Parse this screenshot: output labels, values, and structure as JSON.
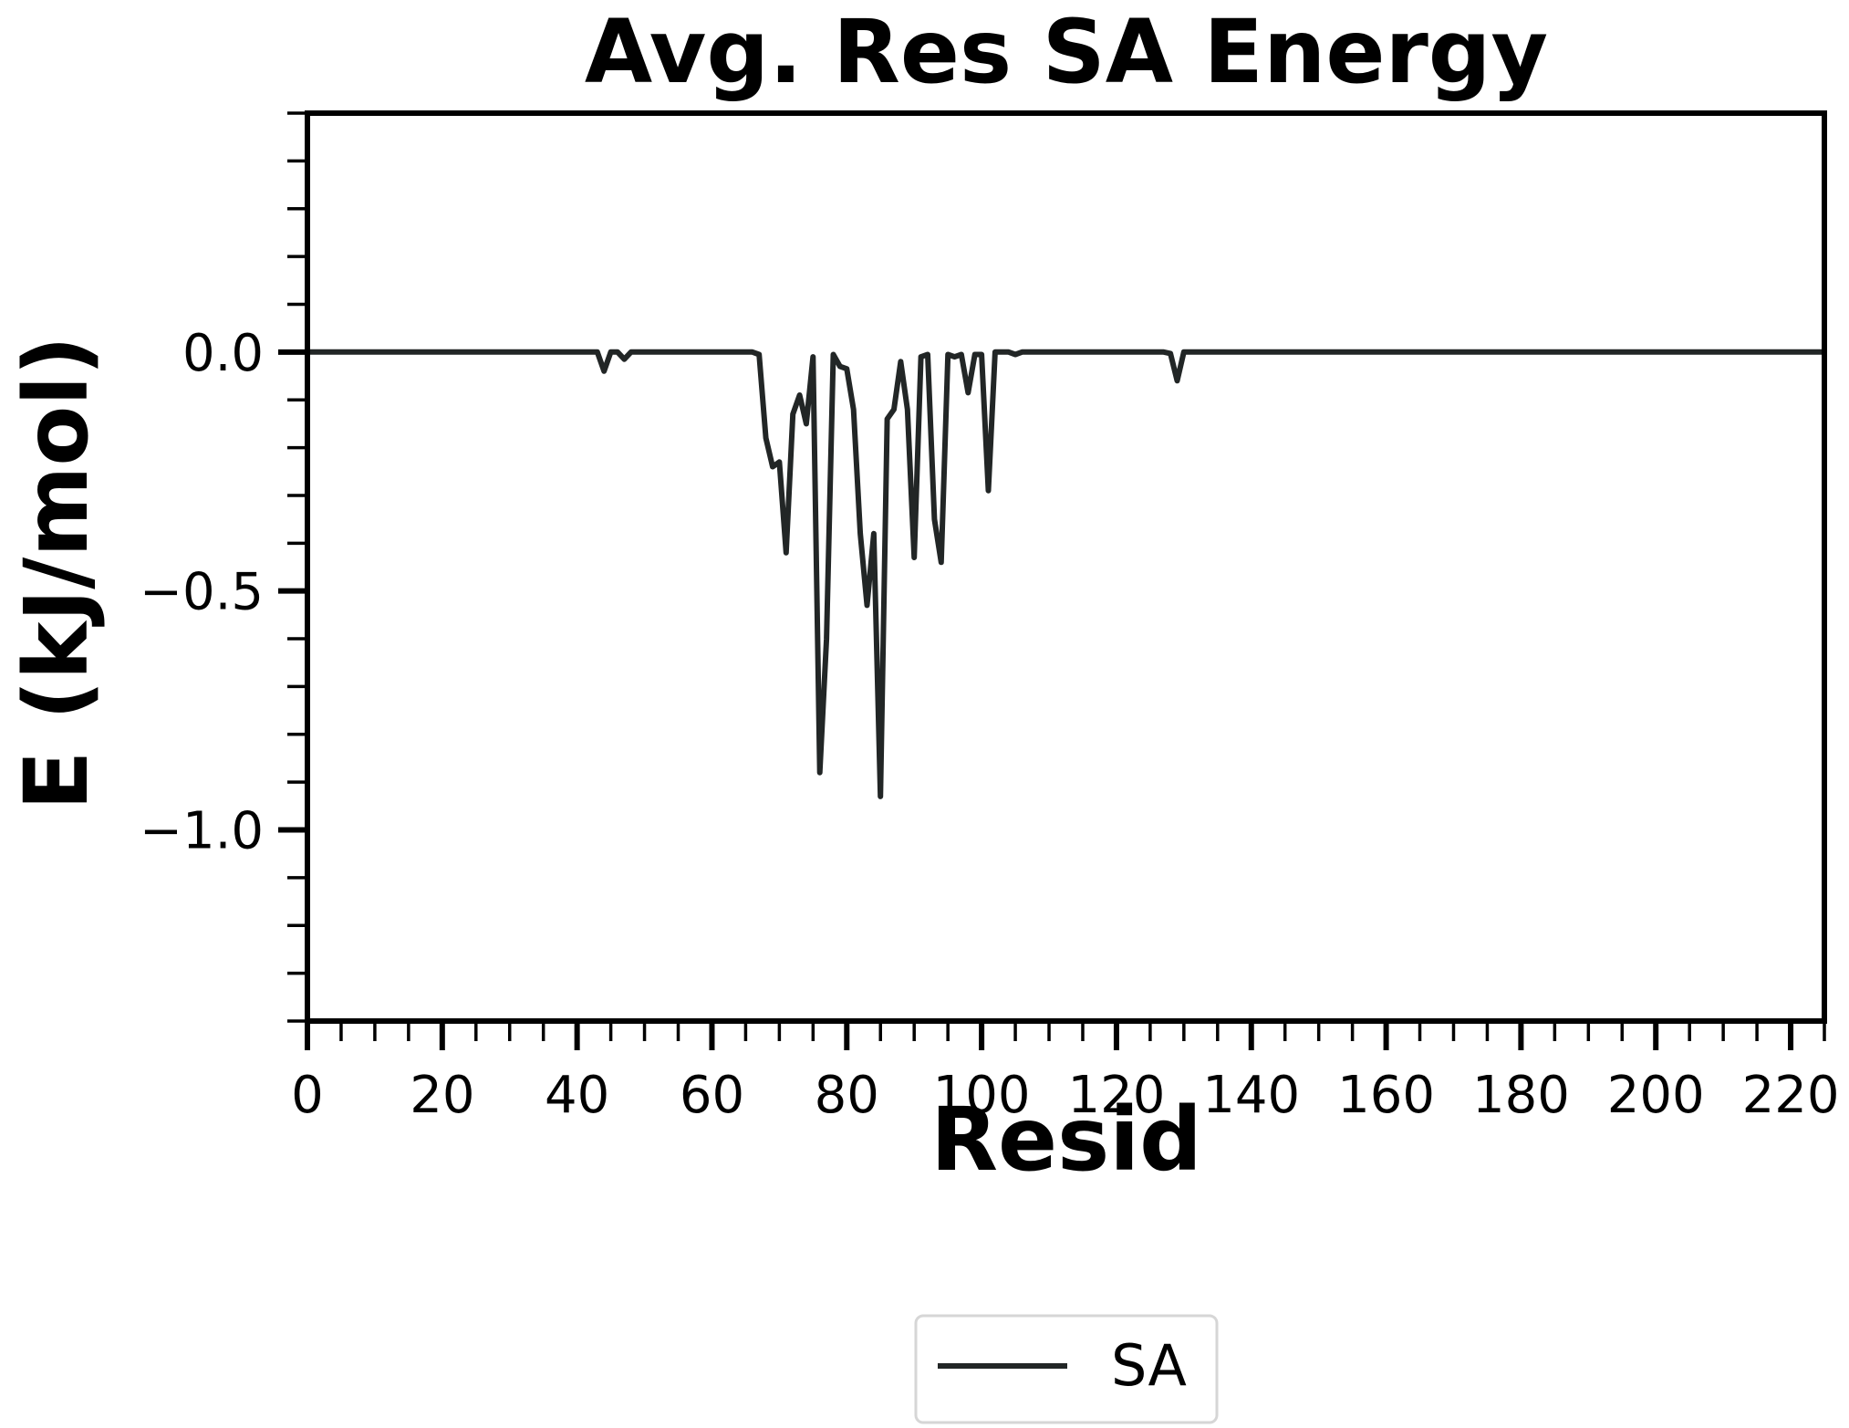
{
  "chart_data": {
    "type": "line",
    "title": "Avg. Res SA Energy",
    "xlabel": "Resid",
    "ylabel": "E (kJ/mol)",
    "xlim": [
      0,
      225
    ],
    "ylim": [
      -1.4,
      0.5
    ],
    "xticks": [
      0,
      20,
      40,
      60,
      80,
      100,
      120,
      140,
      160,
      180,
      200,
      220
    ],
    "xtick_labels": [
      "0",
      "20",
      "40",
      "60",
      "80",
      "100",
      "120",
      "140",
      "160",
      "180",
      "200",
      "220"
    ],
    "yticks": [
      0.0,
      -0.5,
      -1.0
    ],
    "ytick_labels": [
      "0.0",
      "−0.5",
      "−1.0"
    ],
    "grid": false,
    "legend_position": "bottom-center (below plot)",
    "series": [
      {
        "name": "SA",
        "color": "#222626",
        "x": [
          0,
          43,
          44,
          45,
          46,
          47,
          48,
          66,
          67,
          68,
          69,
          70,
          71,
          72,
          73,
          74,
          75,
          76,
          77,
          78,
          79,
          80,
          81,
          82,
          83,
          84,
          85,
          86,
          87,
          88,
          89,
          90,
          91,
          92,
          93,
          94,
          95,
          96,
          97,
          98,
          99,
          100,
          101,
          102,
          103,
          104,
          105,
          106,
          127,
          128,
          129,
          130,
          225
        ],
        "y": [
          0,
          0,
          -0.04,
          0,
          0,
          -0.015,
          0,
          0,
          -0.005,
          -0.18,
          -0.24,
          -0.23,
          -0.42,
          -0.13,
          -0.09,
          -0.15,
          -0.01,
          -0.88,
          -0.6,
          -0.005,
          -0.03,
          -0.035,
          -0.12,
          -0.38,
          -0.53,
          -0.38,
          -0.93,
          -0.14,
          -0.12,
          -0.02,
          -0.12,
          -0.43,
          -0.01,
          -0.005,
          -0.35,
          -0.44,
          -0.005,
          -0.01,
          -0.005,
          -0.085,
          -0.005,
          -0.005,
          -0.29,
          0,
          0,
          0,
          -0.005,
          0,
          0,
          -0.003,
          -0.06,
          0,
          0
        ]
      }
    ]
  }
}
